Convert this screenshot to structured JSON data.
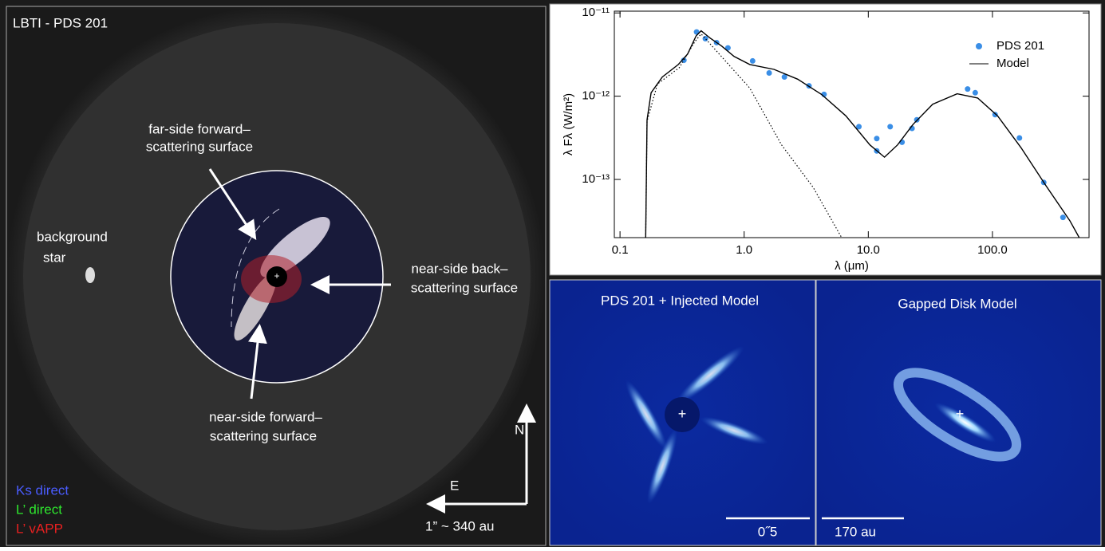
{
  "left_panel": {
    "title": "LBTI - PDS 201",
    "annotations": [
      "far-side forward–",
      "scattering surface",
      "background",
      "star",
      "near-side back–",
      "scattering surface",
      "near-side forward–",
      "scattering surface"
    ],
    "legend": [
      "Ks direct",
      "L’ direct",
      "L’ vAPP"
    ],
    "compass": [
      "N",
      "E"
    ],
    "scale": "1” ~ 340 au"
  },
  "model_panel": {
    "title": "PDS 201 + Injected Model",
    "scale": "0˝5"
  },
  "disk_panel": {
    "title": "Gapped Disk Model",
    "scale": "170 au"
  },
  "chart_data": {
    "type": "scatter",
    "log_x": true,
    "log_y": true,
    "xlabel": "λ (μm)",
    "ylabel": "λ Fλ (W/m²)",
    "xlim": [
      0.09,
      600
    ],
    "ylim": [
      2e-14,
      1.05e-11
    ],
    "xticks": [
      0.1,
      {
        "value": 1,
        "label": "1.0"
      },
      {
        "value": 10,
        "label": "10.0"
      },
      {
        "value": 100,
        "label": "100.0"
      }
    ],
    "yticks": [
      {
        "value": 1e-11,
        "label": "10⁻¹¹"
      },
      {
        "value": 1e-12,
        "label": "10⁻¹²"
      },
      {
        "value": 1e-13,
        "label": "10⁻¹³"
      }
    ],
    "legend": "upper right",
    "series": [
      {
        "name": "PDS 201",
        "color": "#3a8ee6",
        "kind": "points",
        "x": [
          0.327,
          0.414,
          0.487,
          0.6,
          0.74,
          1.17,
          1.59,
          2.11,
          3.33,
          4.4,
          8.4,
          11.7,
          11.7,
          15.0,
          18.7,
          22.5,
          24.6,
          63.1,
          72.7,
          105,
          165,
          259,
          370
        ],
        "values": [
          2.7e-12,
          5.9e-12,
          4.9e-12,
          4.4e-12,
          3.8e-12,
          2.65e-12,
          1.9e-12,
          1.7e-12,
          1.33e-12,
          1.05e-12,
          4.3e-13,
          3.1e-13,
          2.2e-13,
          4.3e-13,
          2.8e-13,
          4.1e-13,
          5.2e-13,
          1.22e-12,
          1.1e-12,
          6e-13,
          3.15e-13,
          9.2e-14,
          3.5e-14
        ]
      },
      {
        "name": "Model",
        "color": "#000000",
        "kind": "line",
        "x": [
          0.161,
          0.165,
          0.178,
          0.219,
          0.295,
          0.35,
          0.41,
          0.45,
          0.53,
          0.66,
          0.83,
          1.11,
          1.74,
          2.7,
          4.2,
          6.6,
          10.3,
          13.5,
          17.2,
          23,
          33,
          52,
          76,
          110,
          170,
          270,
          420,
          500
        ],
        "values": [
          2e-14,
          5.2e-13,
          1.1e-12,
          1.7e-12,
          2.4e-12,
          3.2e-12,
          5.3e-12,
          6.1e-12,
          5e-12,
          4e-12,
          3e-12,
          2.4e-12,
          2.1e-12,
          1.6e-12,
          1.05e-12,
          5.8e-13,
          2.6e-13,
          1.85e-13,
          2.6e-13,
          4.6e-13,
          8e-13,
          1.07e-12,
          9.5e-13,
          5.8e-13,
          2.4e-13,
          8.4e-14,
          3.2e-14,
          2e-14
        ]
      },
      {
        "color": "#000000",
        "kind": "dotted",
        "x": [
          0.161,
          0.165,
          0.2,
          0.3,
          0.4,
          0.45,
          1.11,
          2.0,
          3.6,
          6.1
        ],
        "values": [
          2e-14,
          5e-13,
          1.4e-12,
          2.2e-12,
          4.5e-12,
          5.6e-12,
          1.25e-12,
          2.6e-13,
          8e-14,
          2e-14
        ]
      }
    ]
  }
}
